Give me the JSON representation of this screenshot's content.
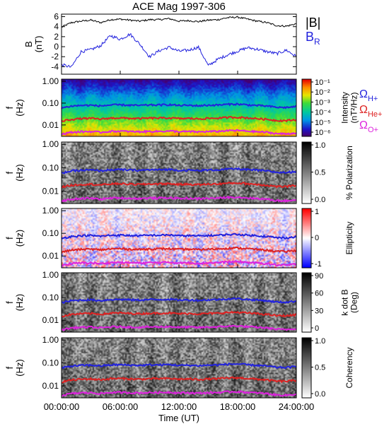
{
  "chart_data": {
    "title": "ACE Mag 1997-306",
    "xlabel": "Time (UT)",
    "x_ticks": [
      "00:00:00",
      "06:00:00",
      "12:00:00",
      "18:00:00",
      "24:00:00"
    ],
    "xlim_hours": [
      0,
      24
    ],
    "panels": [
      {
        "type": "line",
        "ylabel": "B\n(nT)",
        "ylim": [
          -5.5,
          6.5
        ],
        "y_ticks": [
          "6",
          "4",
          "2",
          "0",
          "-2",
          "-4"
        ],
        "y_tick_values": [
          6,
          4,
          2,
          0,
          -2,
          -4
        ],
        "legend": [
          {
            "label": "|B|",
            "color": "#000000"
          },
          {
            "label": "B",
            "sub": "R",
            "color": "#2222dd"
          }
        ],
        "series": [
          {
            "name": "|B|",
            "color": "#000000",
            "x": [
              0,
              1,
              2,
              3,
              4,
              5,
              6,
              7,
              8,
              9,
              10,
              11,
              12,
              13,
              14,
              15,
              16,
              17,
              18,
              19,
              20,
              21,
              22,
              23,
              24
            ],
            "y": [
              3.9,
              4.8,
              5.1,
              5.3,
              4.8,
              5.4,
              5.5,
              5.3,
              5.1,
              5.4,
              5.4,
              5.6,
              5.1,
              5.2,
              5.0,
              5.3,
              5.4,
              5.8,
              5.9,
              5.5,
              5.1,
              4.8,
              4.2,
              4.1,
              4.6
            ]
          },
          {
            "name": "B_R",
            "color": "#2222dd",
            "x": [
              0,
              1,
              2,
              3,
              4,
              5,
              6,
              7,
              8,
              9,
              10,
              11,
              12,
              13,
              14,
              15,
              16,
              17,
              18,
              19,
              20,
              21,
              22,
              23,
              24
            ],
            "y": [
              -3.6,
              -4.1,
              -1.0,
              -0.6,
              0.2,
              2.2,
              1.5,
              2.5,
              0.5,
              -2.0,
              -0.8,
              -0.1,
              -0.9,
              -0.7,
              -0.1,
              -3.8,
              -2.5,
              -1.6,
              -0.9,
              -0.2,
              -0.5,
              -1.0,
              -1.4,
              -0.7,
              -2.0
            ]
          }
        ]
      },
      {
        "type": "heatmap",
        "style": "spectrum",
        "ylabel": "f\n(Hz)",
        "y_ticks": [
          "1.00",
          "0.10",
          "0.01"
        ],
        "colorbar_ticks": [
          "10⁻¹",
          "10⁻²",
          "10⁻³",
          "10⁻⁴",
          "10⁻⁵",
          "10⁻⁶"
        ],
        "colorbar_label": "Intensity\n(nT²/Hz)",
        "side_labels": [
          {
            "label": "Ω",
            "sub": "H+",
            "color": "#2222dd"
          },
          {
            "label": "Ω",
            "sub": "He+",
            "color": "#dd2222"
          },
          {
            "label": "Ω",
            "sub": "O+",
            "color": "#dd22dd"
          }
        ]
      },
      {
        "type": "heatmap",
        "style": "gray",
        "ylabel": "f\n(Hz)",
        "y_ticks": [
          "1.00",
          "0.10",
          "0.01"
        ],
        "colorbar_ticks": [
          "1.0",
          "0.5",
          "0.0"
        ],
        "colorbar_label": "% Polarization"
      },
      {
        "type": "heatmap",
        "style": "diverging",
        "ylabel": "f\n(Hz)",
        "y_ticks": [
          "1.00",
          "0.10",
          "0.01"
        ],
        "colorbar_ticks": [
          "1",
          "0",
          "-1"
        ],
        "colorbar_label": "Ellipticity"
      },
      {
        "type": "heatmap",
        "style": "gray",
        "ylabel": "f\n(Hz)",
        "y_ticks": [
          "1.00",
          "0.10",
          "0.01"
        ],
        "colorbar_ticks": [
          "90",
          "60",
          "30",
          "0"
        ],
        "colorbar_label": "k dot B\n(Deg)"
      },
      {
        "type": "heatmap",
        "style": "gray",
        "ylabel": "f\n(Hz)",
        "y_ticks": [
          "1.00",
          "0.10",
          "0.01"
        ],
        "colorbar_ticks": [
          "1.0",
          "0.5",
          "0.0"
        ],
        "colorbar_label": "Coherency"
      }
    ],
    "gyrofrequency_lines": [
      {
        "name": "ΩH+",
        "color": "#2222dd",
        "x": [
          0,
          1,
          2,
          3,
          4,
          5,
          6,
          7,
          8,
          9,
          10,
          11,
          12,
          13,
          14,
          15,
          16,
          17,
          18,
          19,
          20,
          21,
          22,
          23,
          24
        ],
        "f": [
          0.06,
          0.073,
          0.078,
          0.08,
          0.074,
          0.082,
          0.083,
          0.08,
          0.078,
          0.082,
          0.082,
          0.085,
          0.078,
          0.079,
          0.076,
          0.08,
          0.082,
          0.088,
          0.09,
          0.083,
          0.078,
          0.073,
          0.064,
          0.063,
          0.07
        ]
      },
      {
        "name": "ΩHe+",
        "color": "#dd2222",
        "x": [
          0,
          1,
          2,
          3,
          4,
          5,
          6,
          7,
          8,
          9,
          10,
          11,
          12,
          13,
          14,
          15,
          16,
          17,
          18,
          19,
          20,
          21,
          22,
          23,
          24
        ],
        "f": [
          0.015,
          0.018,
          0.0195,
          0.02,
          0.0185,
          0.0205,
          0.021,
          0.02,
          0.0195,
          0.0205,
          0.0205,
          0.021,
          0.0195,
          0.02,
          0.019,
          0.02,
          0.0205,
          0.022,
          0.0225,
          0.021,
          0.0195,
          0.018,
          0.016,
          0.0158,
          0.0175
        ]
      },
      {
        "name": "ΩO+",
        "color": "#dd22dd",
        "x": [
          0,
          1,
          2,
          3,
          4,
          5,
          6,
          7,
          8,
          9,
          10,
          11,
          12,
          13,
          14,
          15,
          16,
          17,
          18,
          19,
          20,
          21,
          22,
          23,
          24
        ],
        "f": [
          0.0038,
          0.0046,
          0.0049,
          0.005,
          0.0046,
          0.0051,
          0.0052,
          0.005,
          0.0049,
          0.0051,
          0.0051,
          0.0053,
          0.0049,
          0.005,
          0.0048,
          0.005,
          0.0051,
          0.0055,
          0.0056,
          0.0052,
          0.0049,
          0.0046,
          0.004,
          0.0039,
          0.0044
        ]
      }
    ]
  }
}
